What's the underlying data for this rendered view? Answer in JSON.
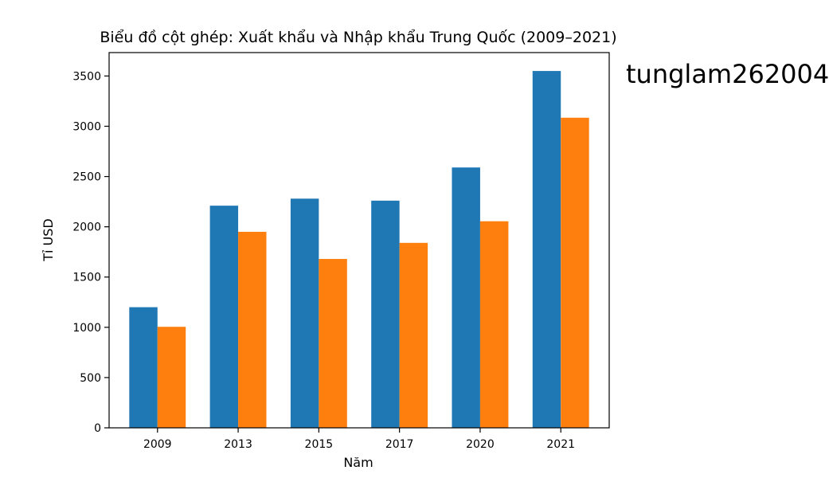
{
  "watermark": "tunglam262004",
  "chart_data": {
    "type": "bar",
    "title": "Biểu đồ cột ghép: Xuất khẩu và Nhập khẩu Trung Quốc (2009–2021)",
    "xlabel": "Năm",
    "ylabel": "Tỉ USD",
    "categories": [
      "2009",
      "2013",
      "2015",
      "2017",
      "2020",
      "2021"
    ],
    "series": [
      {
        "values": [
          1200,
          2210,
          2280,
          2260,
          2590,
          3550
        ],
        "color": "#1f77b4"
      },
      {
        "values": [
          1005,
          1950,
          1680,
          1840,
          2055,
          3085
        ],
        "color": "#ff7f0e"
      }
    ],
    "yticks": [
      0,
      500,
      1000,
      1500,
      2000,
      2500,
      3000,
      3500
    ],
    "ylim": [
      0,
      3733
    ],
    "grid": false,
    "legend": "none"
  }
}
